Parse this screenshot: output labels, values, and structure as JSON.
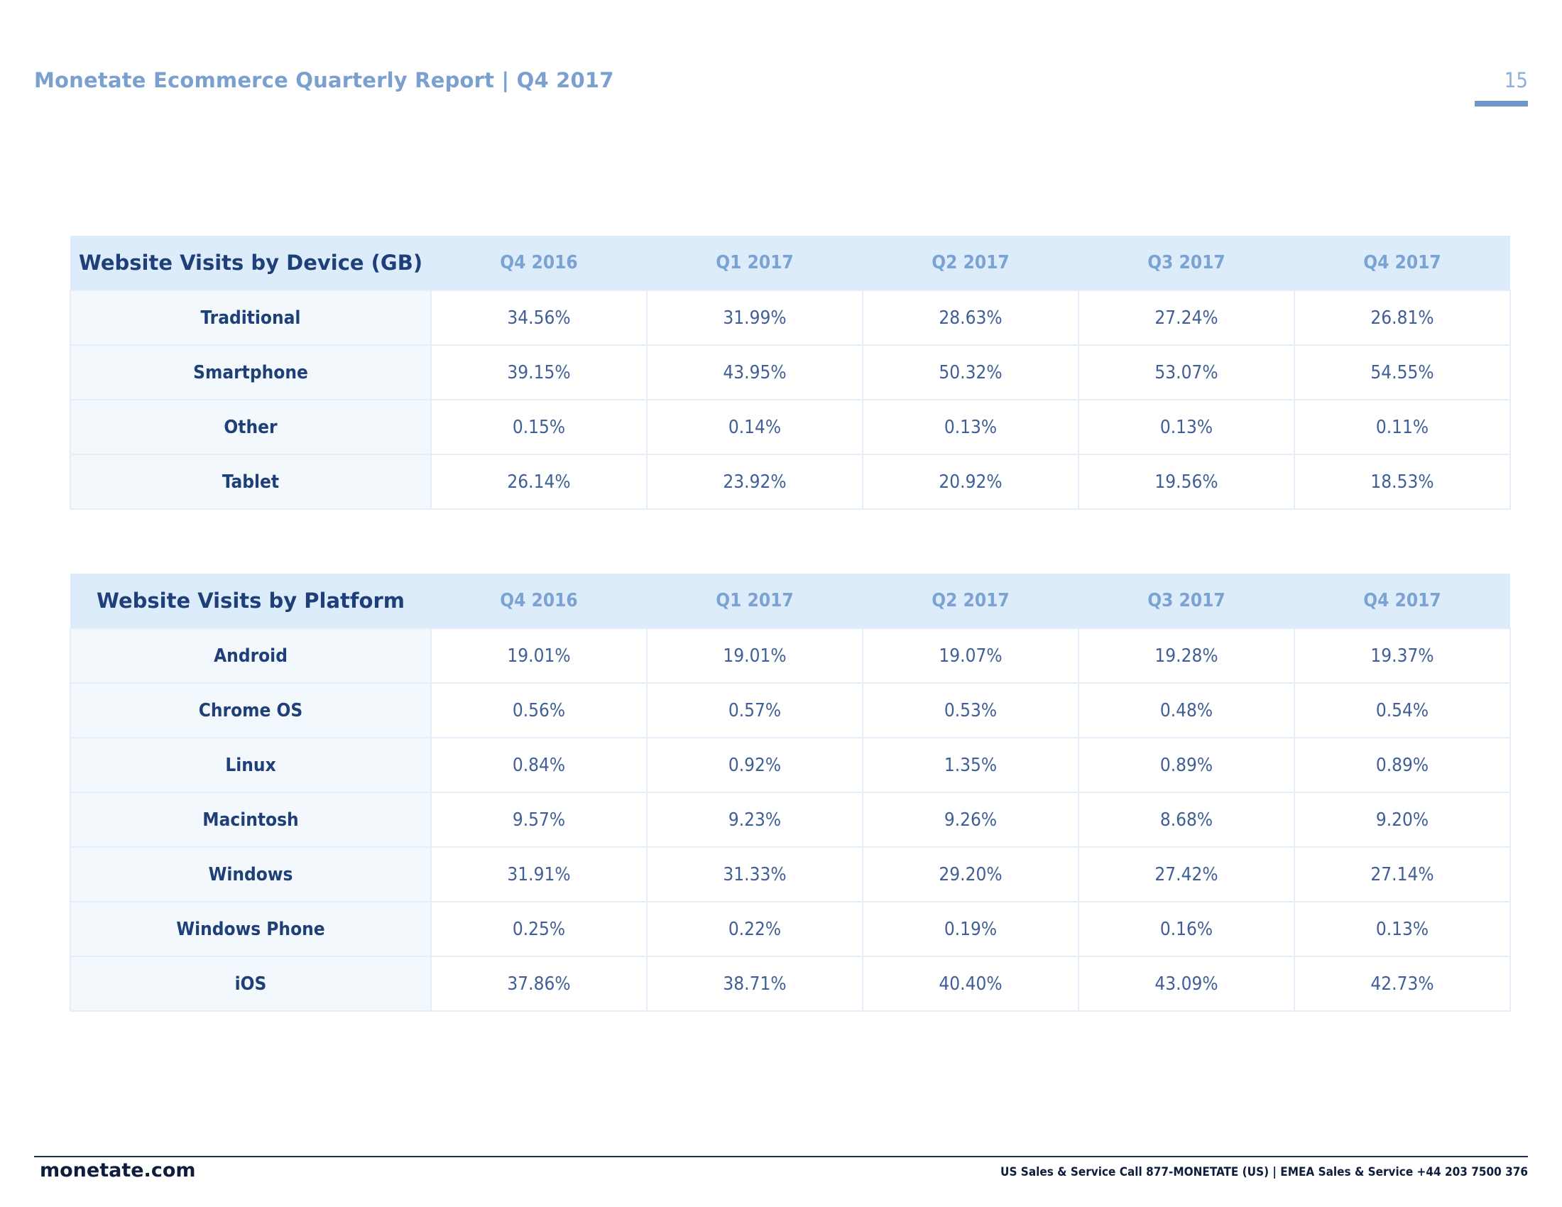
{
  "header": {
    "title": "Monetate Ecommerce Quarterly Report | Q4 2017",
    "page_number": "15"
  },
  "device_table": {
    "title": "Website Visits by Device (GB)",
    "columns": [
      "Q4 2016",
      "Q1 2017",
      "Q2 2017",
      "Q3 2017",
      "Q4 2017"
    ],
    "rows": [
      {
        "label": "Traditional",
        "values": [
          "34.56%",
          "31.99%",
          "28.63%",
          "27.24%",
          "26.81%"
        ]
      },
      {
        "label": "Smartphone",
        "values": [
          "39.15%",
          "43.95%",
          "50.32%",
          "53.07%",
          "54.55%"
        ]
      },
      {
        "label": "Other",
        "values": [
          "0.15%",
          "0.14%",
          "0.13%",
          "0.13%",
          "0.11%"
        ]
      },
      {
        "label": "Tablet",
        "values": [
          "26.14%",
          "23.92%",
          "20.92%",
          "19.56%",
          "18.53%"
        ]
      }
    ]
  },
  "platform_table": {
    "title": "Website Visits by Platform",
    "columns": [
      "Q4 2016",
      "Q1 2017",
      "Q2 2017",
      "Q3 2017",
      "Q4 2017"
    ],
    "rows": [
      {
        "label": "Android",
        "values": [
          "19.01%",
          "19.01%",
          "19.07%",
          "19.28%",
          "19.37%"
        ]
      },
      {
        "label": "Chrome OS",
        "values": [
          "0.56%",
          "0.57%",
          "0.53%",
          "0.48%",
          "0.54%"
        ]
      },
      {
        "label": "Linux",
        "values": [
          "0.84%",
          "0.92%",
          "1.35%",
          "0.89%",
          "0.89%"
        ]
      },
      {
        "label": "Macintosh",
        "values": [
          "9.57%",
          "9.23%",
          "9.26%",
          "8.68%",
          "9.20%"
        ]
      },
      {
        "label": "Windows",
        "values": [
          "31.91%",
          "31.33%",
          "29.20%",
          "27.42%",
          "27.14%"
        ]
      },
      {
        "label": "Windows Phone",
        "values": [
          "0.25%",
          "0.22%",
          "0.19%",
          "0.16%",
          "0.13%"
        ]
      },
      {
        "label": "iOS",
        "values": [
          "37.86%",
          "38.71%",
          "40.40%",
          "43.09%",
          "42.73%"
        ]
      }
    ]
  },
  "footer": {
    "site": "monetate.com",
    "contact": "US Sales & Service Call 877-MONETATE (US) | EMEA Sales & Service +44 203 7500 376"
  },
  "colors": {
    "title_blue": "#7aa0cf",
    "header_fill": "#ddecfb",
    "label_fill": "#f3f8fd",
    "navy": "#1f3f78",
    "footer_navy": "#0f1d3d"
  }
}
